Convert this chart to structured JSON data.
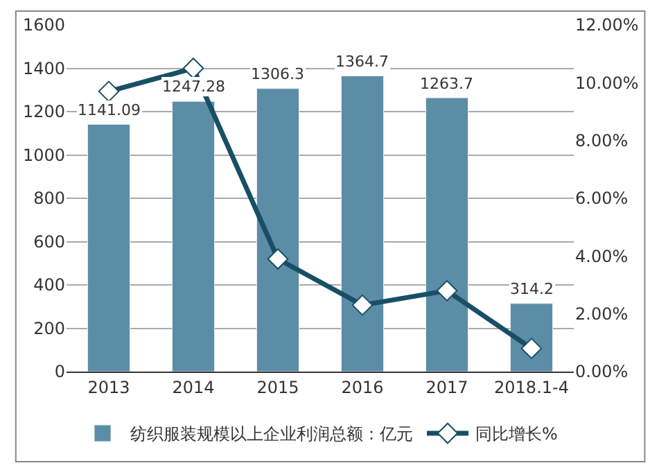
{
  "chart_data": {
    "type": "bar",
    "categories": [
      "2013",
      "2014",
      "2015",
      "2016",
      "2017",
      "2018.1-4"
    ],
    "series": [
      {
        "name": "纺织服装规模以上企业利润总额：亿元",
        "color": "#5b8ea6",
        "values": [
          1141.09,
          1247.28,
          1306.3,
          1364.7,
          1263.7,
          314.2
        ],
        "data_labels": true
      },
      {
        "name": "同比增长%",
        "type": "line",
        "axis": "y2",
        "color": "#184f66",
        "marker": "diamond",
        "line_style": "solid",
        "values": [
          9.7,
          10.5,
          3.9,
          2.3,
          2.8,
          0.8
        ]
      }
    ],
    "ylim": [
      0,
      1600
    ],
    "yticks": [
      0,
      200,
      400,
      600,
      800,
      1000,
      1200,
      1400,
      1600
    ],
    "y2lim": [
      0,
      12
    ],
    "y2ticks": [
      {
        "value": 0,
        "label": "0.00%"
      },
      {
        "value": 2,
        "label": "2.00%"
      },
      {
        "value": 4,
        "label": "4.00%"
      },
      {
        "value": 6,
        "label": "6.00%"
      },
      {
        "value": 8,
        "label": "8.00%"
      },
      {
        "value": 10,
        "label": "10.00%"
      },
      {
        "value": 12,
        "label": "12.00%"
      }
    ],
    "grid": "y",
    "legend": "bottom"
  }
}
